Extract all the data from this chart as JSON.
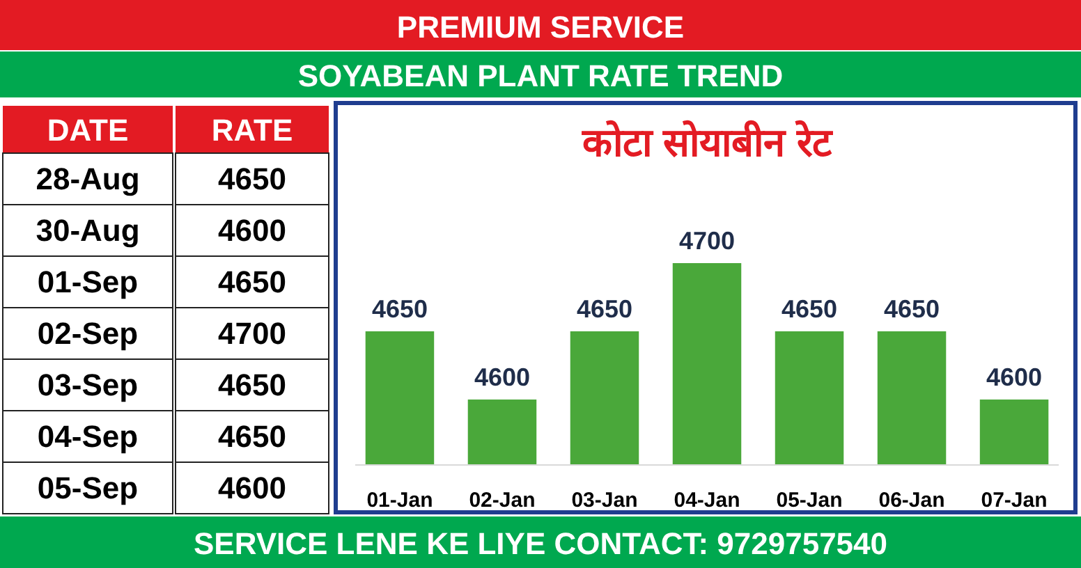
{
  "chart_data": [
    {
      "type": "other",
      "title": "PREMIUM SERVICE",
      "subtitle": "SOYABEAN PLANT RATE TREND",
      "xlabel": "DATE",
      "ylabel": "RATE",
      "categories": [
        "28-Aug",
        "30-Aug",
        "01-Sep",
        "02-Sep",
        "03-Sep",
        "04-Sep",
        "05-Sep"
      ],
      "values": [
        4650,
        4600,
        4650,
        4700,
        4650,
        4650,
        4600
      ],
      "data_labels": true,
      "annotations": [
        "SERVICE LENE KE LIYE CONTACT: 9729757540"
      ]
    },
    {
      "type": "bar",
      "title": "कोटा सोयाबीन रेट",
      "categories": [
        "01-Jan",
        "02-Jan",
        "03-Jan",
        "04-Jan",
        "05-Jan",
        "06-Jan",
        "07-Jan"
      ],
      "values": [
        4650,
        4600,
        4650,
        4700,
        4650,
        4650,
        4600
      ],
      "color": "#4aa83a",
      "ylim": [
        4552,
        4700
      ],
      "tick_labels": "x",
      "data_labels": true
    }
  ]
}
